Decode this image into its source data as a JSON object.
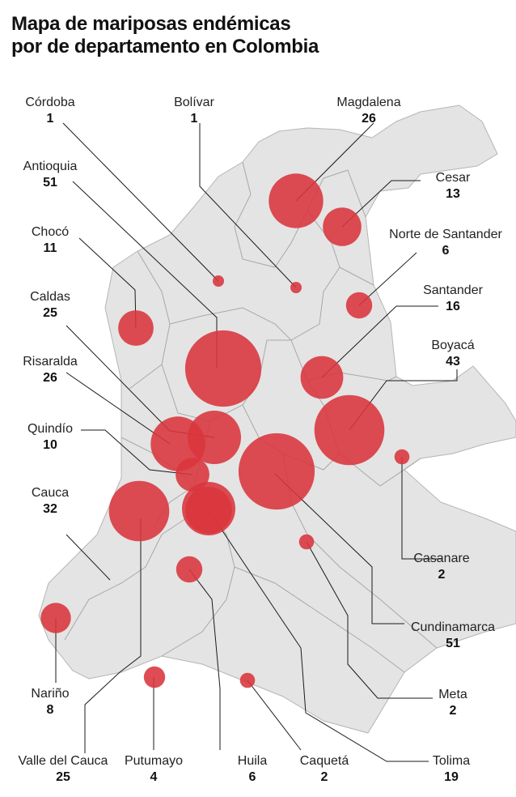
{
  "title": {
    "line1": "Mapa de mariposas endémicas",
    "line2": "por de departamento en Colombia"
  },
  "colors": {
    "bubble": "#d9343c",
    "land": "#e3e3e3",
    "border": "#9a9a9a",
    "leader": "#1a1a1a"
  },
  "departments": [
    {
      "name": "Córdoba",
      "count": "1"
    },
    {
      "name": "Bolívar",
      "count": "1"
    },
    {
      "name": "Magdalena",
      "count": "26"
    },
    {
      "name": "Antioquia",
      "count": "51"
    },
    {
      "name": "Cesar",
      "count": "13"
    },
    {
      "name": "Chocó",
      "count": "11"
    },
    {
      "name": "Norte de Santander",
      "count": "6"
    },
    {
      "name": "Caldas",
      "count": "25"
    },
    {
      "name": "Santander",
      "count": "16"
    },
    {
      "name": "Boyacá",
      "count": "43"
    },
    {
      "name": "Risaralda",
      "count": "26"
    },
    {
      "name": "Quindío",
      "count": "10"
    },
    {
      "name": "Cauca",
      "count": "32"
    },
    {
      "name": "Casanare",
      "count": "2"
    },
    {
      "name": "Cundinamarca",
      "count": "51"
    },
    {
      "name": "Meta",
      "count": "2"
    },
    {
      "name": "Nariño",
      "count": "8"
    },
    {
      "name": "Valle del Cauca",
      "count": "25"
    },
    {
      "name": "Putumayo",
      "count": "4"
    },
    {
      "name": "Huila",
      "count": "6"
    },
    {
      "name": "Caquetá",
      "count": "2"
    },
    {
      "name": "Tolima",
      "count": "19"
    }
  ]
}
